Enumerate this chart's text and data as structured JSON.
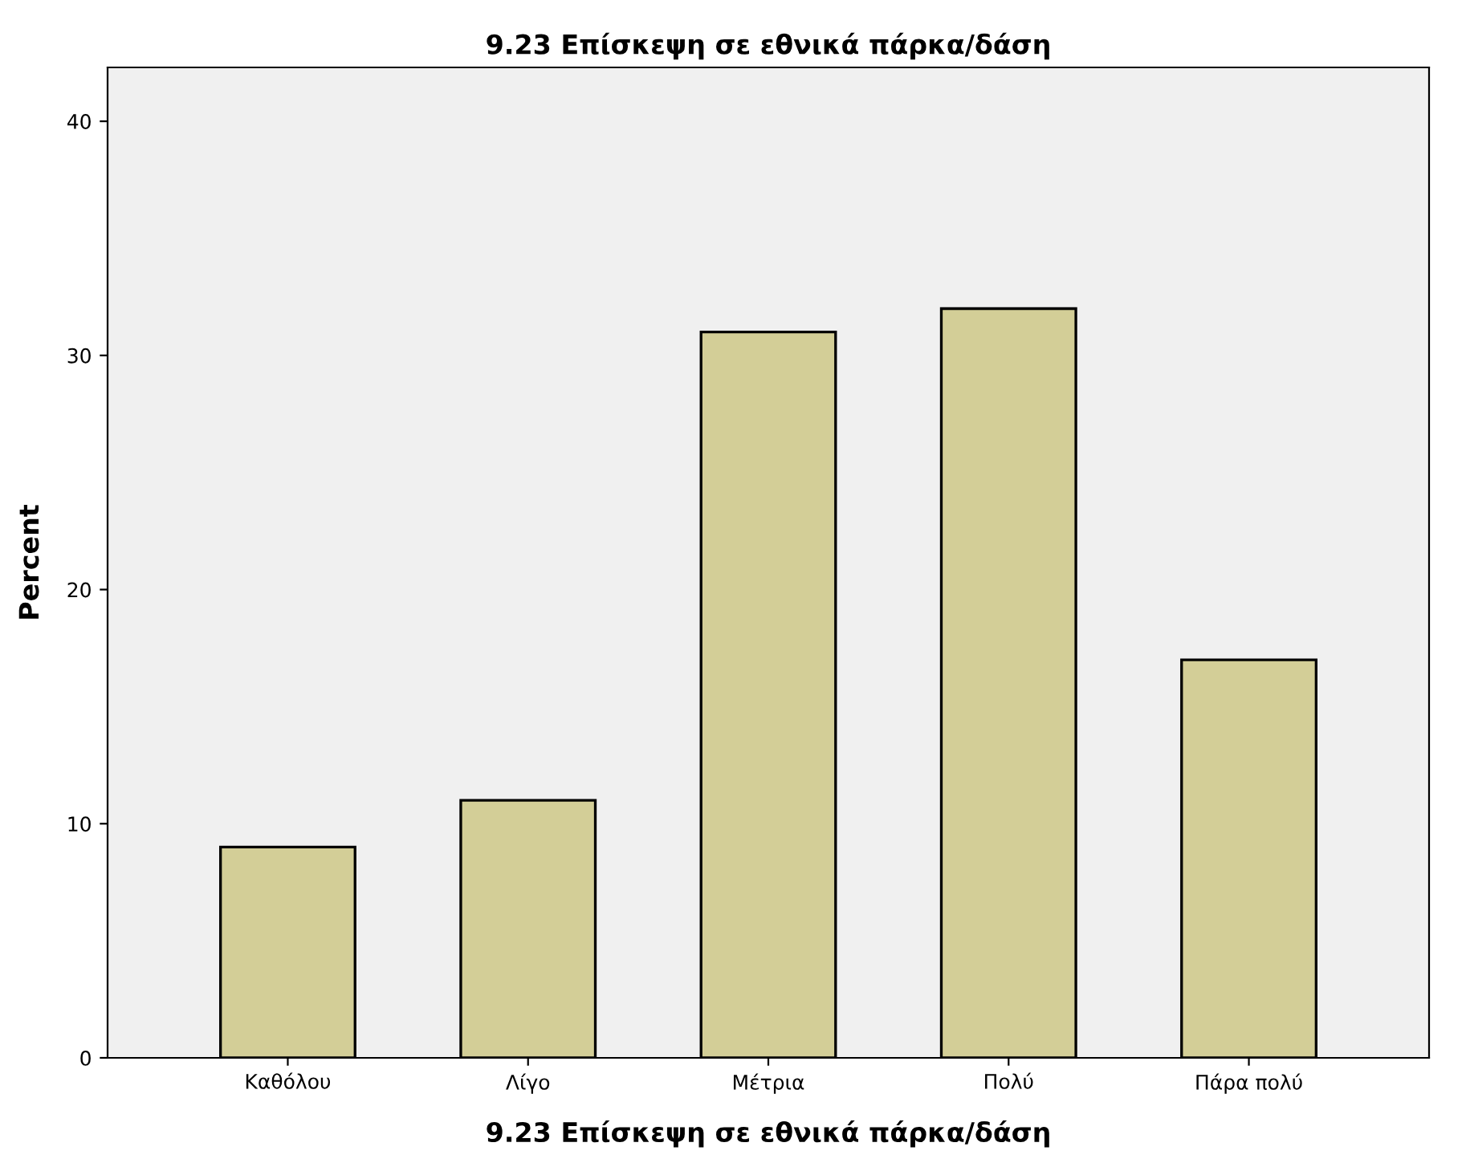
{
  "chart_data": {
    "type": "bar",
    "title": "9.23 Επίσκεψη σε εθνικά πάρκα/δάση",
    "xlabel": "9.23 Επίσκεψη σε εθνικά πάρκα/δάση",
    "ylabel": "Percent",
    "categories": [
      "Καθόλου",
      "Λίγο",
      "Μέτρια",
      "Πολύ",
      "Πάρα πολύ"
    ],
    "values": [
      9,
      11,
      31,
      32,
      17
    ],
    "color": "#d3ce97",
    "ylim": [
      0,
      42.3
    ],
    "yticks": [
      0,
      10,
      20,
      30,
      40
    ],
    "grid": false
  }
}
